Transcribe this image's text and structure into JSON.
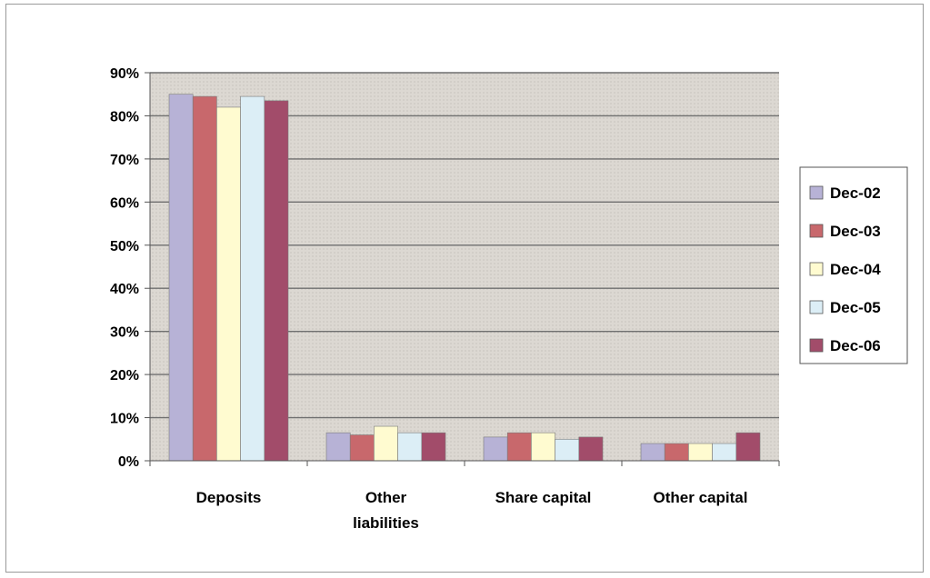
{
  "chart_data": {
    "type": "bar",
    "title": "",
    "xlabel": "",
    "ylabel": "",
    "categories": [
      [
        "Deposits"
      ],
      [
        "Other",
        "liabilities"
      ],
      [
        "Share capital"
      ],
      [
        "Other capital"
      ]
    ],
    "y_ticks": [
      "0%",
      "10%",
      "20%",
      "30%",
      "40%",
      "50%",
      "60%",
      "70%",
      "80%",
      "90%"
    ],
    "ylim": [
      0,
      90
    ],
    "grid": true,
    "legend_position": "right",
    "series": [
      {
        "name": "Dec-02",
        "values": [
          85,
          6.5,
          5.5,
          4
        ],
        "color": "#b7b2d6"
      },
      {
        "name": "Dec-03",
        "values": [
          84.5,
          6,
          6.5,
          4
        ],
        "color": "#c8686c"
      },
      {
        "name": "Dec-04",
        "values": [
          82,
          8,
          6.5,
          4
        ],
        "color": "#fffbd0"
      },
      {
        "name": "Dec-05",
        "values": [
          84.5,
          6.5,
          5,
          4
        ],
        "color": "#dceef6"
      },
      {
        "name": "Dec-06",
        "values": [
          83.5,
          6.5,
          5.5,
          6.5
        ],
        "color": "#a24c6a"
      }
    ],
    "plot_background": "#dddad5"
  }
}
